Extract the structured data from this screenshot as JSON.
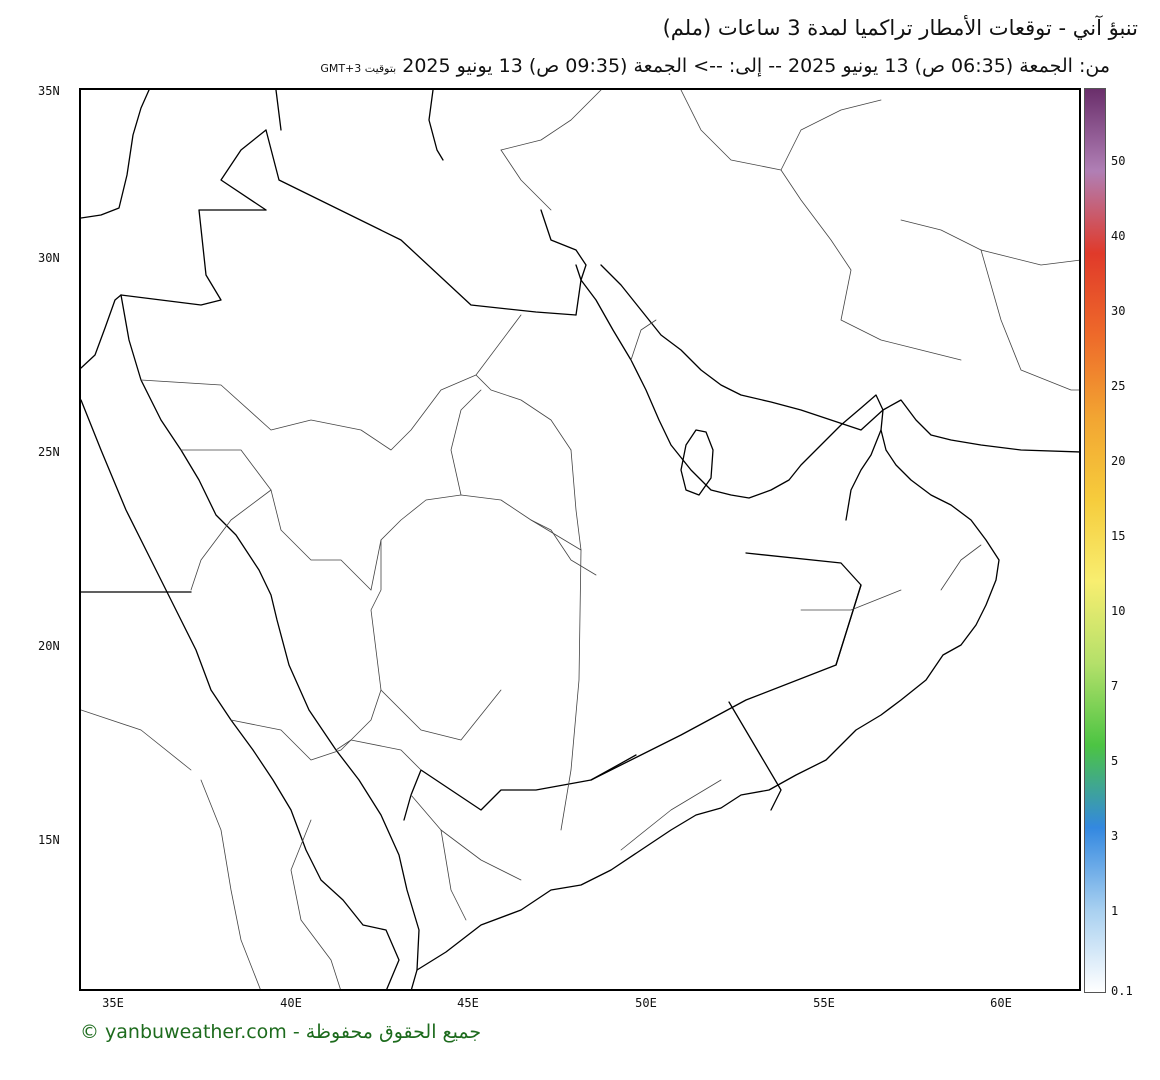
{
  "header": {
    "title": "تنبؤ آني - توقعات الأمطار تراكميا لمدة 3 ساعات (ملم)",
    "range": "من: الجمعة (06:35 ص) 13 يونيو 2025 -- إلى: --> الجمعة (09:35 ص) 13 يونيو 2025",
    "timezone": "بتوقيت GMT+3"
  },
  "map": {
    "lat_ticks": [
      "35N",
      "30N",
      "25N",
      "20N",
      "15N"
    ],
    "lon_ticks": [
      "35E",
      "40E",
      "45E",
      "50E",
      "55E",
      "60E"
    ],
    "coast_color": "#000000",
    "border_color": "#444444"
  },
  "legend": {
    "unit": "ملم",
    "values": [
      "50",
      "40",
      "30",
      "25",
      "20",
      "15",
      "10",
      "7",
      "5",
      "3",
      "1",
      "0.1"
    ],
    "colors": [
      "#6a2f6b",
      "#b07fb5",
      "#e03a2a",
      "#ee6a2a",
      "#f2a532",
      "#f6cc3c",
      "#f8ee70",
      "#b4e06a",
      "#4cc443",
      "#3388e0",
      "#a8d0f0",
      "#ffffff"
    ]
  },
  "footer": {
    "copyright": "© yanbuweather.com - جميع الحقوق محفوظة"
  }
}
